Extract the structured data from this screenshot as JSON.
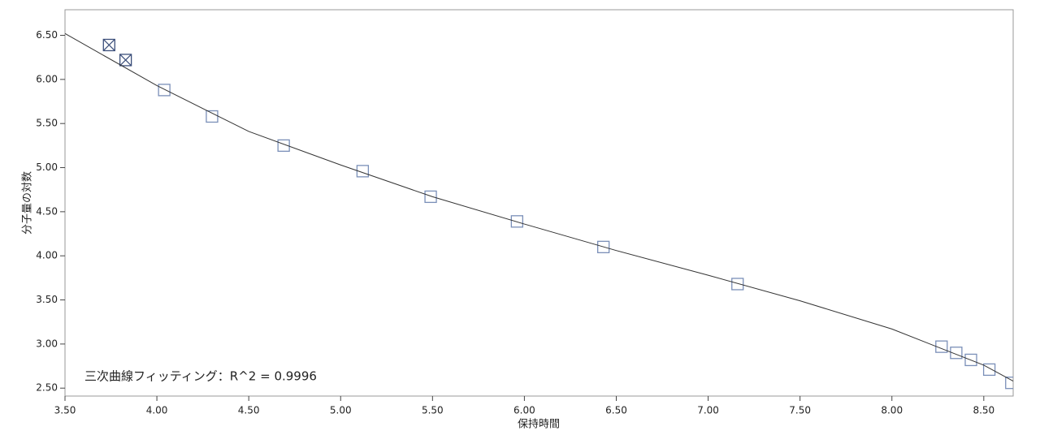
{
  "chart_data": {
    "type": "scatter",
    "annotation": "三次曲線フィッティング：R^2 = 0.9996",
    "x_label": "保持時間",
    "y_label": "分子量の対数",
    "xlim": [
      3.5,
      8.66
    ],
    "ylim": [
      2.41,
      6.79
    ],
    "xticks": [
      {
        "value": 3.5,
        "label": "3.50"
      },
      {
        "value": 4,
        "label": "4.00"
      },
      {
        "value": 4.5,
        "label": "4.50"
      },
      {
        "value": 5,
        "label": "5.00"
      },
      {
        "value": 5.5,
        "label": "5.50"
      },
      {
        "value": 6,
        "label": "6.00"
      },
      {
        "value": 6.5,
        "label": "6.50"
      },
      {
        "value": 7,
        "label": "7.00"
      },
      {
        "value": 7.5,
        "label": "7.50"
      },
      {
        "value": 8,
        "label": "8.00"
      },
      {
        "value": 8.5,
        "label": "8.50"
      }
    ],
    "yticks": [
      {
        "value": 2.5,
        "label": "2.50"
      },
      {
        "value": 3,
        "label": "3.00"
      },
      {
        "value": 3.5,
        "label": "3.50"
      },
      {
        "value": 4,
        "label": "4.00"
      },
      {
        "value": 4.5,
        "label": "4.50"
      },
      {
        "value": 5,
        "label": "5.00"
      },
      {
        "value": 5.5,
        "label": "5.50"
      },
      {
        "value": 6,
        "label": "6.00"
      },
      {
        "value": 6.5,
        "label": "6.50"
      }
    ],
    "series": [
      {
        "color": "#7a8fb8",
        "excluded_color": "#3b4e7a",
        "x": [
          3.74,
          3.83,
          4.04,
          4.3,
          4.69,
          5.12,
          5.49,
          5.96,
          6.43,
          7.16,
          8.27,
          8.35,
          8.43,
          8.53,
          8.65
        ],
        "values": [
          6.39,
          6.22,
          5.88,
          5.58,
          5.25,
          4.96,
          4.67,
          4.39,
          4.1,
          3.68,
          2.97,
          2.9,
          2.82,
          2.71,
          2.56
        ],
        "markers": [
          "crossed",
          "crossed",
          "box",
          "box",
          "box",
          "box",
          "box",
          "box",
          "box",
          "box",
          "box",
          "box",
          "box",
          "box",
          "box"
        ]
      },
      {
        "type": "line",
        "color": "#333333",
        "x": [
          3.5,
          4.0,
          4.5,
          5.0,
          5.5,
          6.0,
          6.5,
          7.0,
          7.5,
          8.0,
          8.5,
          8.66
        ],
        "values": [
          6.52,
          5.93,
          5.41,
          5.03,
          4.67,
          4.36,
          4.06,
          3.78,
          3.49,
          3.17,
          2.76,
          2.58
        ]
      }
    ]
  }
}
